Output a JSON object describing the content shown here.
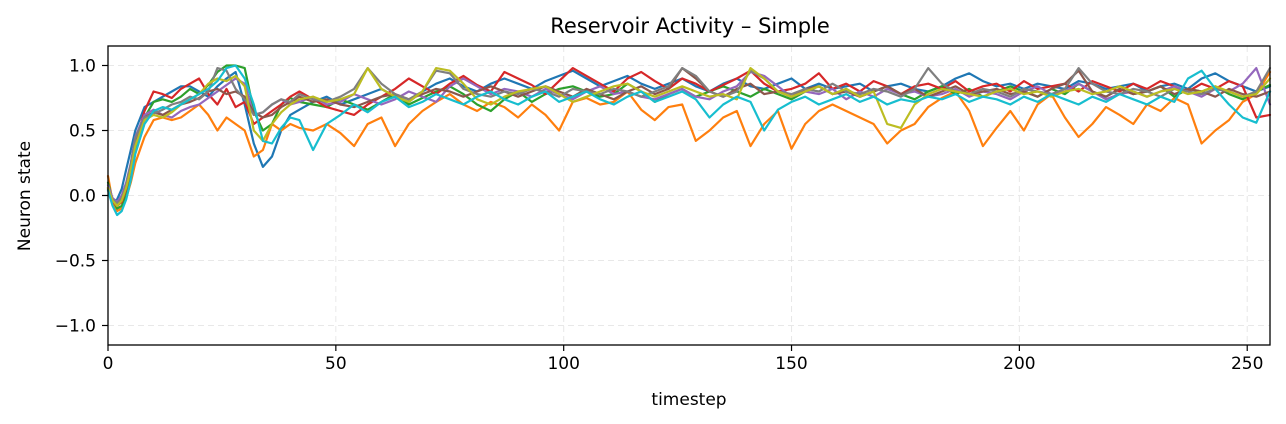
{
  "chart_data": {
    "type": "line",
    "title": "Reservoir Activity – Simple",
    "xlabel": "timestep",
    "ylabel": "Neuron state",
    "xlim": [
      0,
      255
    ],
    "ylim": [
      -1.15,
      1.15
    ],
    "xticks": [
      0,
      50,
      100,
      150,
      200,
      250
    ],
    "xtick_labels": [
      "0",
      "50",
      "100",
      "150",
      "200",
      "250"
    ],
    "yticks": [
      -1.0,
      -0.5,
      0.0,
      0.5,
      1.0
    ],
    "ytick_labels": [
      "−1.0",
      "−0.5",
      "0.0",
      "0.5",
      "1.0"
    ],
    "grid": true,
    "x": [
      0,
      1,
      2,
      3,
      4,
      5,
      6,
      8,
      10,
      12,
      14,
      16,
      18,
      20,
      22,
      24,
      26,
      28,
      30,
      32,
      34,
      36,
      38,
      40,
      42,
      45,
      48,
      51,
      54,
      57,
      60,
      63,
      66,
      69,
      72,
      75,
      78,
      81,
      84,
      87,
      90,
      93,
      96,
      99,
      102,
      105,
      108,
      111,
      114,
      117,
      120,
      123,
      126,
      129,
      132,
      135,
      138,
      141,
      144,
      147,
      150,
      153,
      156,
      159,
      162,
      165,
      168,
      171,
      174,
      177,
      180,
      183,
      186,
      189,
      192,
      195,
      198,
      201,
      204,
      207,
      210,
      213,
      216,
      219,
      222,
      225,
      228,
      231,
      234,
      237,
      240,
      243,
      246,
      249,
      252,
      255
    ],
    "series": [
      {
        "color": "#1f77b4",
        "values": [
          0.05,
          -0.05,
          -0.03,
          0.05,
          0.2,
          0.35,
          0.5,
          0.68,
          0.72,
          0.76,
          0.8,
          0.84,
          0.84,
          0.8,
          0.76,
          0.84,
          0.9,
          0.95,
          0.7,
          0.4,
          0.22,
          0.3,
          0.5,
          0.62,
          0.66,
          0.72,
          0.76,
          0.7,
          0.74,
          0.78,
          0.82,
          0.76,
          0.72,
          0.8,
          0.86,
          0.9,
          0.84,
          0.8,
          0.86,
          0.9,
          0.86,
          0.82,
          0.88,
          0.92,
          0.96,
          0.9,
          0.84,
          0.88,
          0.92,
          0.86,
          0.82,
          0.86,
          0.9,
          0.84,
          0.8,
          0.86,
          0.9,
          0.84,
          0.82,
          0.86,
          0.9,
          0.82,
          0.86,
          0.82,
          0.84,
          0.86,
          0.8,
          0.84,
          0.86,
          0.82,
          0.8,
          0.84,
          0.9,
          0.94,
          0.88,
          0.84,
          0.86,
          0.82,
          0.86,
          0.84,
          0.82,
          0.88,
          0.86,
          0.82,
          0.84,
          0.86,
          0.8,
          0.84,
          0.86,
          0.82,
          0.9,
          0.94,
          0.88,
          0.84,
          0.8,
          0.84
        ]
      },
      {
        "color": "#ff7f0e",
        "values": [
          0.15,
          -0.05,
          -0.12,
          -0.1,
          -0.02,
          0.1,
          0.25,
          0.45,
          0.58,
          0.6,
          0.58,
          0.6,
          0.65,
          0.7,
          0.62,
          0.5,
          0.6,
          0.55,
          0.5,
          0.3,
          0.35,
          0.55,
          0.5,
          0.55,
          0.52,
          0.5,
          0.55,
          0.48,
          0.38,
          0.55,
          0.6,
          0.38,
          0.55,
          0.65,
          0.72,
          0.78,
          0.7,
          0.65,
          0.72,
          0.68,
          0.6,
          0.7,
          0.62,
          0.5,
          0.72,
          0.75,
          0.7,
          0.72,
          0.8,
          0.66,
          0.58,
          0.68,
          0.7,
          0.42,
          0.5,
          0.6,
          0.65,
          0.38,
          0.55,
          0.65,
          0.36,
          0.55,
          0.65,
          0.7,
          0.65,
          0.6,
          0.55,
          0.4,
          0.5,
          0.55,
          0.68,
          0.75,
          0.8,
          0.65,
          0.38,
          0.52,
          0.65,
          0.5,
          0.7,
          0.78,
          0.6,
          0.45,
          0.55,
          0.68,
          0.62,
          0.55,
          0.7,
          0.65,
          0.75,
          0.7,
          0.4,
          0.5,
          0.58,
          0.72,
          0.78,
          0.95
        ]
      },
      {
        "color": "#2ca02c",
        "values": [
          0.1,
          -0.03,
          -0.1,
          -0.08,
          0.0,
          0.15,
          0.35,
          0.6,
          0.72,
          0.74,
          0.72,
          0.76,
          0.82,
          0.78,
          0.85,
          0.95,
          1.0,
          1.0,
          0.98,
          0.65,
          0.5,
          0.55,
          0.7,
          0.75,
          0.72,
          0.7,
          0.68,
          0.74,
          0.7,
          0.66,
          0.72,
          0.78,
          0.7,
          0.75,
          0.8,
          0.84,
          0.78,
          0.7,
          0.65,
          0.74,
          0.8,
          0.72,
          0.78,
          0.82,
          0.84,
          0.8,
          0.76,
          0.78,
          0.86,
          0.8,
          0.72,
          0.78,
          0.82,
          0.76,
          0.8,
          0.84,
          0.8,
          0.76,
          0.82,
          0.78,
          0.74,
          0.8,
          0.84,
          0.78,
          0.82,
          0.76,
          0.8,
          0.84,
          0.78,
          0.74,
          0.8,
          0.84,
          0.78,
          0.82,
          0.76,
          0.8,
          0.84,
          0.8,
          0.76,
          0.82,
          0.78,
          0.86,
          0.8,
          0.76,
          0.82,
          0.78,
          0.8,
          0.84,
          0.76,
          0.82,
          0.8,
          0.84,
          0.78,
          0.74,
          0.8,
          0.85
        ]
      },
      {
        "color": "#d62728",
        "values": [
          0.05,
          -0.05,
          -0.08,
          -0.05,
          0.05,
          0.2,
          0.4,
          0.65,
          0.8,
          0.78,
          0.75,
          0.82,
          0.86,
          0.9,
          0.78,
          0.7,
          0.82,
          0.68,
          0.72,
          0.55,
          0.6,
          0.65,
          0.7,
          0.76,
          0.8,
          0.74,
          0.68,
          0.65,
          0.62,
          0.7,
          0.76,
          0.82,
          0.9,
          0.84,
          0.78,
          0.86,
          0.92,
          0.85,
          0.8,
          0.95,
          0.9,
          0.85,
          0.78,
          0.88,
          0.98,
          0.92,
          0.86,
          0.8,
          0.9,
          0.95,
          0.88,
          0.82,
          0.9,
          0.86,
          0.8,
          0.85,
          0.9,
          0.96,
          0.86,
          0.8,
          0.82,
          0.86,
          0.94,
          0.82,
          0.86,
          0.8,
          0.88,
          0.84,
          0.78,
          0.84,
          0.86,
          0.82,
          0.88,
          0.8,
          0.84,
          0.86,
          0.8,
          0.88,
          0.82,
          0.84,
          0.86,
          0.8,
          0.88,
          0.84,
          0.8,
          0.86,
          0.82,
          0.88,
          0.84,
          0.8,
          0.86,
          0.82,
          0.88,
          0.84,
          0.6,
          0.62
        ]
      },
      {
        "color": "#9467bd",
        "values": [
          0.08,
          -0.02,
          -0.05,
          0.0,
          0.1,
          0.25,
          0.45,
          0.62,
          0.66,
          0.62,
          0.6,
          0.65,
          0.68,
          0.7,
          0.75,
          0.8,
          0.85,
          0.9,
          0.86,
          0.62,
          0.64,
          0.7,
          0.74,
          0.7,
          0.72,
          0.76,
          0.7,
          0.72,
          0.78,
          0.74,
          0.7,
          0.74,
          0.8,
          0.76,
          0.72,
          0.84,
          0.9,
          0.84,
          0.78,
          0.82,
          0.8,
          0.76,
          0.82,
          0.78,
          0.74,
          0.8,
          0.84,
          0.78,
          0.8,
          0.76,
          0.74,
          0.78,
          0.82,
          0.76,
          0.74,
          0.8,
          0.84,
          0.95,
          0.92,
          0.84,
          0.76,
          0.8,
          0.78,
          0.82,
          0.74,
          0.8,
          0.76,
          0.82,
          0.78,
          0.8,
          0.76,
          0.78,
          0.82,
          0.76,
          0.8,
          0.78,
          0.74,
          0.8,
          0.84,
          0.78,
          0.8,
          0.86,
          0.8,
          0.74,
          0.78,
          0.8,
          0.76,
          0.8,
          0.84,
          0.8,
          0.76,
          0.82,
          0.8,
          0.86,
          0.98,
          0.7
        ]
      },
      {
        "color": "#8c564b",
        "values": [
          0.05,
          -0.04,
          -0.07,
          -0.03,
          0.06,
          0.22,
          0.42,
          0.6,
          0.64,
          0.62,
          0.66,
          0.7,
          0.72,
          0.75,
          0.8,
          0.82,
          0.78,
          0.8,
          0.76,
          0.64,
          0.6,
          0.62,
          0.68,
          0.72,
          0.76,
          0.72,
          0.74,
          0.7,
          0.68,
          0.72,
          0.76,
          0.78,
          0.74,
          0.78,
          0.82,
          0.8,
          0.76,
          0.8,
          0.84,
          0.8,
          0.76,
          0.8,
          0.84,
          0.8,
          0.76,
          0.82,
          0.78,
          0.74,
          0.8,
          0.84,
          0.78,
          0.82,
          0.98,
          0.9,
          0.8,
          0.76,
          0.82,
          0.86,
          0.78,
          0.8,
          0.76,
          0.82,
          0.84,
          0.78,
          0.8,
          0.76,
          0.8,
          0.84,
          0.78,
          0.82,
          0.76,
          0.8,
          0.84,
          0.78,
          0.8,
          0.82,
          0.78,
          0.8,
          0.76,
          0.82,
          0.86,
          0.96,
          0.8,
          0.76,
          0.82,
          0.78,
          0.8,
          0.84,
          0.78,
          0.82,
          0.8,
          0.76,
          0.82,
          0.78,
          0.76,
          0.8
        ]
      },
      {
        "color": "#7f7f7f",
        "values": [
          0.06,
          -0.03,
          -0.06,
          -0.02,
          0.08,
          0.24,
          0.44,
          0.6,
          0.63,
          0.66,
          0.7,
          0.72,
          0.76,
          0.74,
          0.8,
          0.98,
          0.96,
          0.82,
          0.74,
          0.62,
          0.64,
          0.7,
          0.74,
          0.72,
          0.78,
          0.74,
          0.72,
          0.76,
          0.82,
          0.98,
          0.86,
          0.78,
          0.74,
          0.8,
          0.96,
          0.94,
          0.82,
          0.78,
          0.76,
          0.8,
          0.78,
          0.82,
          0.8,
          0.76,
          0.82,
          0.8,
          0.78,
          0.82,
          0.8,
          0.76,
          0.8,
          0.84,
          0.98,
          0.92,
          0.8,
          0.76,
          0.8,
          0.96,
          0.9,
          0.8,
          0.78,
          0.82,
          0.8,
          0.86,
          0.8,
          0.78,
          0.82,
          0.8,
          0.76,
          0.82,
          0.98,
          0.86,
          0.8,
          0.78,
          0.82,
          0.8,
          0.76,
          0.82,
          0.8,
          0.78,
          0.82,
          0.98,
          0.86,
          0.8,
          0.78,
          0.82,
          0.8,
          0.76,
          0.82,
          0.8,
          0.78,
          0.82,
          0.8,
          0.76,
          0.8,
          0.98
        ]
      },
      {
        "color": "#bcbd22",
        "values": [
          0.06,
          -0.04,
          -0.08,
          -0.04,
          0.06,
          0.2,
          0.38,
          0.58,
          0.62,
          0.6,
          0.64,
          0.7,
          0.74,
          0.78,
          0.86,
          0.9,
          0.88,
          0.92,
          0.84,
          0.5,
          0.42,
          0.55,
          0.64,
          0.7,
          0.74,
          0.76,
          0.72,
          0.74,
          0.78,
          0.98,
          0.82,
          0.76,
          0.72,
          0.8,
          0.98,
          0.96,
          0.86,
          0.74,
          0.7,
          0.76,
          0.8,
          0.82,
          0.84,
          0.78,
          0.72,
          0.76,
          0.8,
          0.84,
          0.86,
          0.8,
          0.76,
          0.8,
          0.84,
          0.8,
          0.76,
          0.78,
          0.74,
          0.98,
          0.9,
          0.8,
          0.76,
          0.8,
          0.84,
          0.78,
          0.82,
          0.76,
          0.8,
          0.55,
          0.52,
          0.7,
          0.78,
          0.82,
          0.8,
          0.78,
          0.76,
          0.8,
          0.82,
          0.78,
          0.8,
          0.76,
          0.8,
          0.82,
          0.78,
          0.8,
          0.84,
          0.8,
          0.76,
          0.8,
          0.82,
          0.78,
          0.8,
          0.84,
          0.8,
          0.76,
          0.78,
          0.9
        ]
      },
      {
        "color": "#17becf",
        "values": [
          0.04,
          -0.08,
          -0.15,
          -0.12,
          -0.03,
          0.12,
          0.32,
          0.55,
          0.65,
          0.68,
          0.66,
          0.7,
          0.74,
          0.78,
          0.82,
          0.88,
          0.98,
          1.0,
          0.9,
          0.7,
          0.42,
          0.4,
          0.52,
          0.6,
          0.58,
          0.35,
          0.55,
          0.62,
          0.7,
          0.64,
          0.72,
          0.76,
          0.68,
          0.72,
          0.78,
          0.74,
          0.7,
          0.76,
          0.8,
          0.74,
          0.7,
          0.76,
          0.8,
          0.72,
          0.76,
          0.8,
          0.74,
          0.7,
          0.76,
          0.8,
          0.72,
          0.76,
          0.8,
          0.74,
          0.6,
          0.7,
          0.76,
          0.72,
          0.5,
          0.66,
          0.72,
          0.76,
          0.7,
          0.74,
          0.78,
          0.72,
          0.76,
          0.7,
          0.74,
          0.72,
          0.76,
          0.74,
          0.78,
          0.72,
          0.76,
          0.74,
          0.7,
          0.76,
          0.72,
          0.78,
          0.74,
          0.7,
          0.76,
          0.72,
          0.78,
          0.74,
          0.7,
          0.76,
          0.72,
          0.9,
          0.96,
          0.82,
          0.7,
          0.6,
          0.56,
          0.8
        ]
      }
    ]
  }
}
